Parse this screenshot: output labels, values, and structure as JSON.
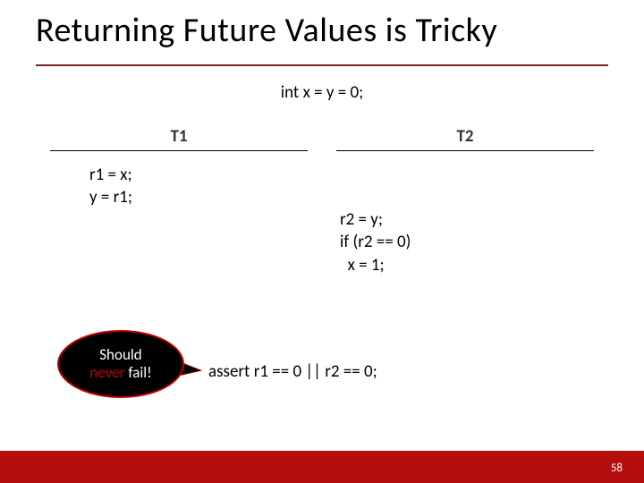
{
  "title": "Returning Future Values is Tricky",
  "init_code": "int x = y = 0;",
  "columns": {
    "t1": {
      "header": "T1",
      "lines": [
        "r1 = x;",
        "y = r1;"
      ]
    },
    "t2": {
      "header": "T2",
      "lines": [
        "r2 = y;",
        "if (r2 == 0)",
        "  x = 1;"
      ]
    }
  },
  "assert_line": "assert r1 == 0 || r2 == 0;",
  "callout": {
    "line1": "Should",
    "never": "never",
    "line2_rest": " fail!"
  },
  "page_number": "58",
  "colors": {
    "accent": "#752424",
    "footer": "#b40e0e",
    "callout_border": "#c00000",
    "callout_bg": "#000000",
    "never_text": "#c00000",
    "title_text": "#000000"
  }
}
